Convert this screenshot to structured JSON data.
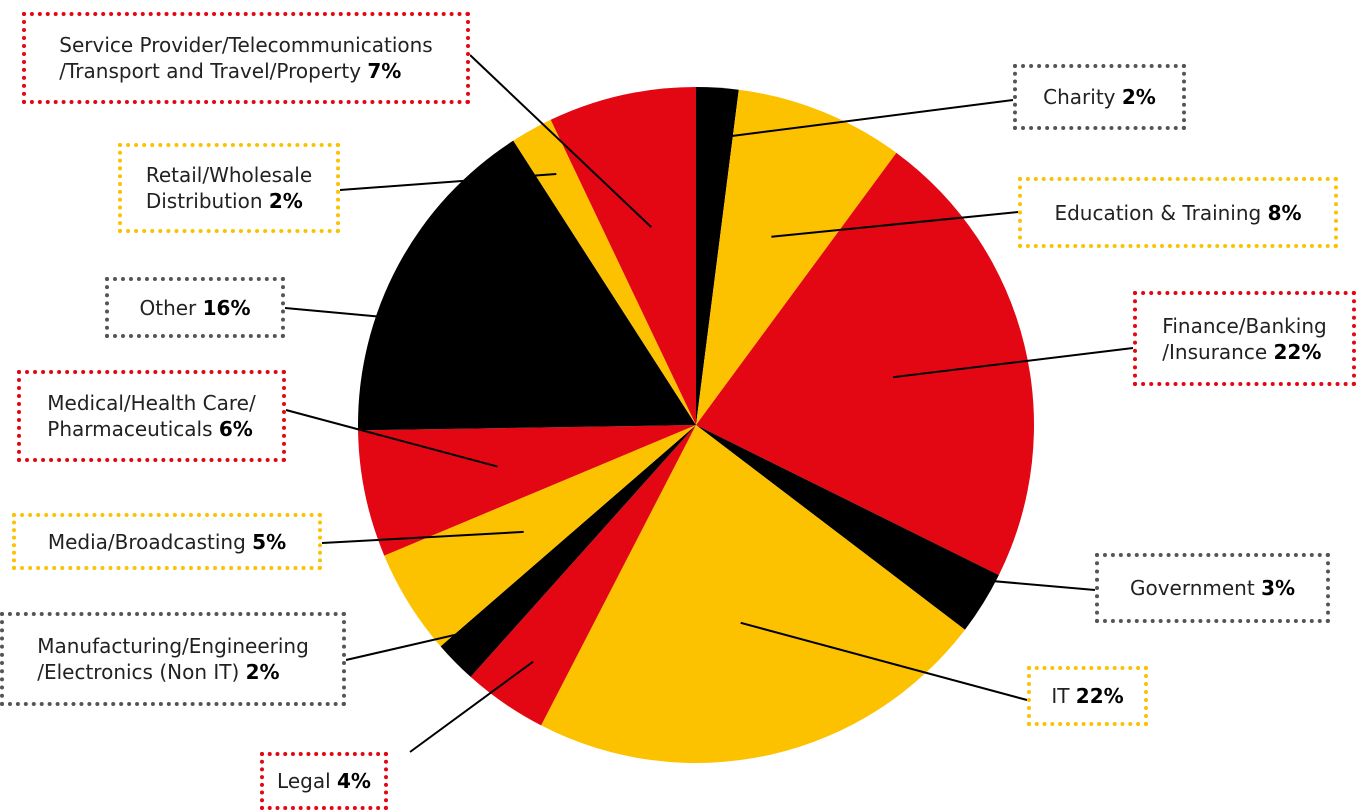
{
  "chart_data": {
    "type": "pie",
    "categories": [
      "Charity",
      "Education & Training",
      "Finance/Banking\n/Insurance",
      "Government",
      "IT",
      "Legal",
      "Manufacturing/Engineering\n/Electronics (Non IT)",
      "Media/Broadcasting",
      "Medical/Health Care/\nPharmaceuticals",
      "Other",
      "Retail/Wholesale\nDistribution",
      "Service Provider/Telecommunications\n/Transport and Travel/Property"
    ],
    "values": [
      2,
      8,
      22,
      3,
      22,
      4,
      2,
      5,
      6,
      16,
      2,
      7
    ],
    "value_labels": [
      "2%",
      "8%",
      "22%",
      "3%",
      "22%",
      "4%",
      "2%",
      "5%",
      "6%",
      "16%",
      "2%",
      "7%"
    ],
    "colors": [
      "#000000",
      "#fcc200",
      "#e30613",
      "#000000",
      "#fcc200",
      "#e30613",
      "#000000",
      "#fcc200",
      "#e30613",
      "#000000",
      "#fcc200",
      "#e30613"
    ]
  }
}
